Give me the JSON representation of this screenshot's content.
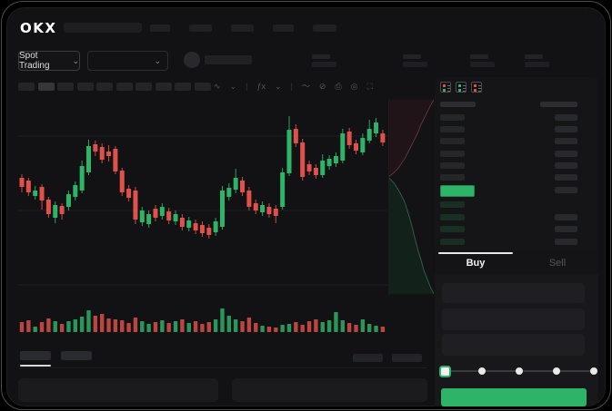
{
  "app": {
    "logo": "OKX"
  },
  "theme": {
    "green": "#2db469",
    "red": "#e0514b",
    "bid_dim": "#1a2f24",
    "ask_gray": "#242628",
    "right_bar": "#27292c",
    "header_bar": "#2b2d30"
  },
  "header": {
    "nav_item_count": 5
  },
  "subheader": {
    "market_selector": {
      "label": "Spot Trading",
      "chevron": "⌄"
    },
    "pair_dropdown": {
      "chevron": "⌄"
    },
    "stat_placeholder_count": 4
  },
  "toolbar": {
    "chip_count": 10,
    "icons": [
      {
        "name": "candle-style-icon",
        "glyph": "∿",
        "interactable": true
      },
      {
        "name": "chevron-down-icon",
        "glyph": "⌄",
        "interactable": true
      },
      {
        "name": "toolbar-divider",
        "glyph": "|",
        "interactable": false
      },
      {
        "name": "indicators-icon",
        "glyph": "ƒx",
        "interactable": true
      },
      {
        "name": "chevron-down-icon",
        "glyph": "⌄",
        "interactable": true
      },
      {
        "name": "toolbar-divider",
        "glyph": "|",
        "interactable": false
      },
      {
        "name": "line-tool-icon",
        "glyph": "〜",
        "interactable": true
      },
      {
        "name": "measure-icon",
        "glyph": "⊘",
        "interactable": true
      },
      {
        "name": "camera-icon",
        "glyph": "⎙",
        "interactable": true
      },
      {
        "name": "settings-icon",
        "glyph": "◎",
        "interactable": true
      },
      {
        "name": "fullscreen-icon",
        "glyph": "⛶",
        "interactable": true
      }
    ]
  },
  "chart_data": {
    "type": "candlestick",
    "title": "",
    "note": "no axis labels visible; prices are relative units read from pixel positions",
    "x_count": 55,
    "ylim": [
      60,
      210
    ],
    "grid_prices": [
      180,
      98,
      16
    ],
    "candles": [
      [
        134,
        138,
        118,
        124
      ],
      [
        131,
        134,
        114,
        118
      ],
      [
        114,
        125,
        110,
        120
      ],
      [
        124,
        127,
        99,
        109
      ],
      [
        110,
        113,
        90,
        94
      ],
      [
        90,
        108,
        84,
        104
      ],
      [
        103,
        106,
        88,
        94
      ],
      [
        102,
        120,
        98,
        116
      ],
      [
        113,
        130,
        109,
        126
      ],
      [
        120,
        153,
        117,
        147
      ],
      [
        140,
        176,
        137,
        169
      ],
      [
        171,
        175,
        158,
        163
      ],
      [
        168,
        172,
        150,
        154
      ],
      [
        163,
        170,
        152,
        158
      ],
      [
        166,
        169,
        138,
        141
      ],
      [
        142,
        145,
        114,
        118
      ],
      [
        122,
        126,
        108,
        112
      ],
      [
        120,
        124,
        83,
        88
      ],
      [
        85,
        102,
        81,
        98
      ],
      [
        83,
        98,
        79,
        94
      ],
      [
        100,
        104,
        86,
        90
      ],
      [
        92,
        106,
        88,
        102
      ],
      [
        97,
        101,
        83,
        87
      ],
      [
        86,
        98,
        82,
        94
      ],
      [
        90,
        94,
        76,
        80
      ],
      [
        79,
        91,
        75,
        87
      ],
      [
        84,
        88,
        72,
        76
      ],
      [
        82,
        86,
        69,
        73
      ],
      [
        79,
        83,
        67,
        71
      ],
      [
        74,
        90,
        70,
        86
      ],
      [
        80,
        125,
        77,
        120
      ],
      [
        113,
        128,
        109,
        123
      ],
      [
        121,
        144,
        117,
        134
      ],
      [
        131,
        135,
        114,
        118
      ],
      [
        120,
        124,
        98,
        102
      ],
      [
        106,
        110,
        94,
        98
      ],
      [
        96,
        108,
        92,
        104
      ],
      [
        102,
        106,
        90,
        94
      ],
      [
        100,
        104,
        84,
        92
      ],
      [
        102,
        145,
        99,
        140
      ],
      [
        139,
        202,
        136,
        187
      ],
      [
        188,
        193,
        168,
        172
      ],
      [
        173,
        177,
        131,
        135
      ],
      [
        149,
        153,
        137,
        141
      ],
      [
        145,
        149,
        133,
        137
      ],
      [
        137,
        160,
        134,
        153
      ],
      [
        147,
        159,
        143,
        155
      ],
      [
        150,
        162,
        146,
        158
      ],
      [
        153,
        188,
        150,
        183
      ],
      [
        185,
        189,
        166,
        170
      ],
      [
        172,
        176,
        160,
        164
      ],
      [
        162,
        183,
        159,
        178
      ],
      [
        175,
        198,
        172,
        188
      ],
      [
        183,
        200,
        179,
        195
      ],
      [
        183,
        187,
        169,
        173
      ]
    ],
    "volumes": [
      11,
      13,
      6,
      11,
      15,
      12,
      9,
      12,
      14,
      17,
      24,
      18,
      20,
      15,
      14,
      13,
      10,
      16,
      12,
      9,
      11,
      13,
      10,
      12,
      14,
      10,
      12,
      9,
      11,
      14,
      26,
      18,
      14,
      12,
      16,
      10,
      7,
      6,
      5,
      8,
      9,
      11,
      8,
      12,
      14,
      11,
      13,
      22,
      13,
      10,
      8,
      14,
      9,
      7,
      6
    ]
  },
  "depth_chart": {
    "type": "area",
    "ask_points": [
      [
        50,
        0
      ],
      [
        47,
        5
      ],
      [
        44,
        11
      ],
      [
        41,
        17
      ],
      [
        38,
        23
      ],
      [
        35,
        29
      ],
      [
        33,
        35
      ],
      [
        30,
        41
      ],
      [
        27,
        47
      ],
      [
        24,
        53
      ],
      [
        21,
        59
      ],
      [
        18,
        65
      ],
      [
        14,
        71
      ],
      [
        10,
        77
      ],
      [
        5,
        82
      ],
      [
        0,
        86
      ]
    ],
    "bid_points": [
      [
        0,
        88
      ],
      [
        5,
        93
      ],
      [
        9,
        99
      ],
      [
        13,
        106
      ],
      [
        17,
        114
      ],
      [
        20,
        123
      ],
      [
        23,
        133
      ],
      [
        26,
        144
      ],
      [
        29,
        156
      ],
      [
        32,
        168
      ],
      [
        36,
        181
      ],
      [
        39,
        192
      ],
      [
        43,
        202
      ],
      [
        46,
        210
      ],
      [
        50,
        218
      ]
    ],
    "ask_fill": "#241518",
    "ask_stroke": "#6e3e3e",
    "bid_fill": "#122219",
    "bid_stroke": "#3e6a58"
  },
  "order_book": {
    "view_icons": [
      {
        "name": "book-both-icon",
        "dots": [
          "red",
          "green"
        ]
      },
      {
        "name": "book-bids-icon",
        "dots": [
          "green",
          "green"
        ]
      },
      {
        "name": "book-asks-icon",
        "dots": [
          "red",
          "red"
        ]
      }
    ],
    "rows": [
      {
        "kind": "header",
        "right": true
      },
      {
        "kind": "ask",
        "right": true
      },
      {
        "kind": "ask",
        "right": true
      },
      {
        "kind": "ask",
        "right": true
      },
      {
        "kind": "ask",
        "right": true
      },
      {
        "kind": "ask",
        "right": true
      },
      {
        "kind": "ask",
        "right": true
      },
      {
        "kind": "last",
        "right": true,
        "highlight_color": "#2db469"
      },
      {
        "kind": "bid",
        "right": false
      },
      {
        "kind": "bid",
        "right": true
      },
      {
        "kind": "bid",
        "right": true
      },
      {
        "kind": "bid",
        "right": true
      }
    ]
  },
  "trade_panel": {
    "tabs": [
      {
        "label": "Buy",
        "active": true
      },
      {
        "label": "Sell",
        "active": false
      }
    ],
    "field_count": 3,
    "slider": {
      "stops": 5,
      "active_stop": 0
    },
    "submit_label": ""
  },
  "bottom_panel": {
    "tab_count": 2,
    "active_tab": 0,
    "right_chip_count": 2,
    "panel_count": 2
  }
}
